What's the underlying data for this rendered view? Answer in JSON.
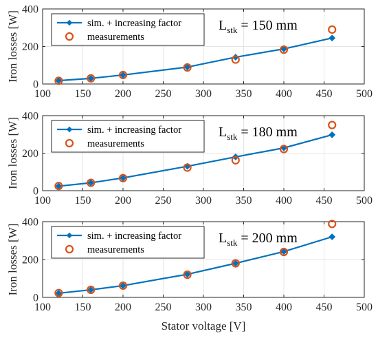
{
  "colors": {
    "simulation": "#0072BD",
    "measurements": "#D95319",
    "grid": "#e5e5e5",
    "axis": "#262626"
  },
  "shared": {
    "xlabel": "Stator voltage [V]",
    "ylabel": "Iron losses [W]"
  },
  "chart_data": [
    {
      "type": "line",
      "xlim": [
        100,
        500
      ],
      "ylim": [
        0,
        400
      ],
      "x_ticks": [
        "100",
        "150",
        "200",
        "250",
        "300",
        "350",
        "400",
        "450",
        "500"
      ],
      "y_ticks": [
        "0",
        "200",
        "400"
      ],
      "grid": true,
      "legend_position": "top-left",
      "annotation": {
        "main": "L",
        "sub": "stk",
        "rest": " = 150 mm"
      },
      "series": [
        {
          "name": "sim. + increasing factor",
          "style": "line-diamond",
          "x": [
            120,
            160,
            200,
            280,
            340,
            400,
            460
          ],
          "y": [
            18,
            30,
            48,
            90,
            143,
            187,
            245
          ]
        },
        {
          "name": "measurements",
          "style": "circle-open",
          "x": [
            120,
            160,
            200,
            280,
            340,
            400,
            460
          ],
          "y": [
            17,
            30,
            48,
            88,
            130,
            183,
            290
          ]
        }
      ]
    },
    {
      "type": "line",
      "xlim": [
        100,
        500
      ],
      "ylim": [
        0,
        400
      ],
      "x_ticks": [
        "100",
        "150",
        "200",
        "250",
        "300",
        "350",
        "400",
        "450",
        "500"
      ],
      "y_ticks": [
        "0",
        "200",
        "400"
      ],
      "grid": true,
      "legend_position": "top-left",
      "annotation": {
        "main": "L",
        "sub": "stk",
        "rest": " = 180 mm"
      },
      "series": [
        {
          "name": "sim. + increasing factor",
          "style": "line-diamond",
          "x": [
            120,
            160,
            200,
            280,
            340,
            400,
            460
          ],
          "y": [
            24,
            42,
            68,
            130,
            180,
            228,
            298
          ]
        },
        {
          "name": "measurements",
          "style": "circle-open",
          "x": [
            120,
            160,
            200,
            280,
            340,
            400,
            460
          ],
          "y": [
            25,
            42,
            67,
            123,
            162,
            222,
            350
          ]
        }
      ]
    },
    {
      "type": "line",
      "xlim": [
        100,
        500
      ],
      "ylim": [
        0,
        400
      ],
      "x_ticks": [
        "100",
        "150",
        "200",
        "250",
        "300",
        "350",
        "400",
        "450",
        "500"
      ],
      "y_ticks": [
        "0",
        "200",
        "400"
      ],
      "grid": true,
      "legend_position": "top-left",
      "annotation": {
        "main": "L",
        "sub": "stk",
        "rest": " = 200 mm"
      },
      "series": [
        {
          "name": "sim. + increasing factor",
          "style": "line-diamond",
          "x": [
            120,
            160,
            200,
            280,
            340,
            400,
            460
          ],
          "y": [
            22,
            40,
            62,
            122,
            180,
            242,
            320
          ]
        },
        {
          "name": "measurements",
          "style": "circle-open",
          "x": [
            120,
            160,
            200,
            280,
            340,
            400,
            460
          ],
          "y": [
            23,
            40,
            62,
            120,
            180,
            240,
            388
          ]
        }
      ]
    }
  ]
}
